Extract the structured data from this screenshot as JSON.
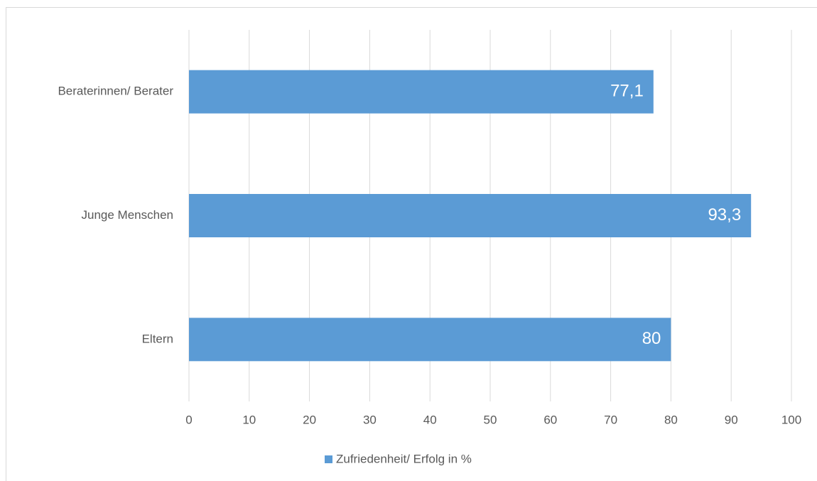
{
  "chart_data": {
    "type": "bar",
    "orientation": "horizontal",
    "categories": [
      "Beraterinnen/ Berater",
      "Junge Menschen",
      "Eltern"
    ],
    "series": [
      {
        "name": "Zufriedenheit/ Erfolg in %",
        "color": "#5b9bd5",
        "values": [
          77.1,
          93.3,
          80
        ],
        "value_labels": [
          "77,1",
          "93,3",
          "80"
        ]
      }
    ],
    "xlim": [
      0,
      100
    ],
    "xticks": [
      0,
      10,
      20,
      30,
      40,
      50,
      60,
      70,
      80,
      90,
      100
    ],
    "grid": true,
    "legend": "bottom"
  }
}
